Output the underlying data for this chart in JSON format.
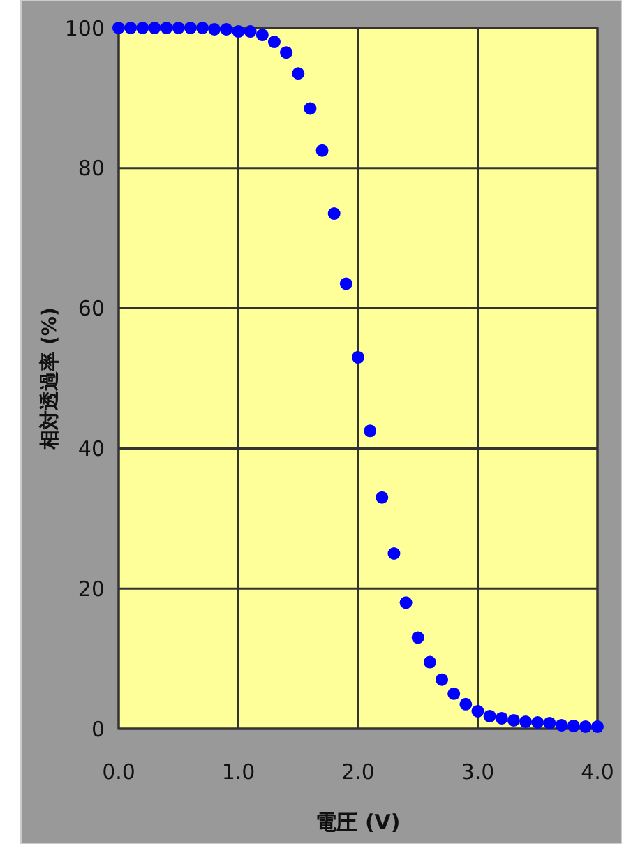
{
  "chart_data": {
    "type": "scatter",
    "xlabel": "電圧 (V)",
    "ylabel": "相対透過率 (%)",
    "x": [
      0,
      0.1,
      0.2,
      0.3,
      0.4,
      0.5,
      0.6,
      0.7,
      0.8,
      0.9,
      1.0,
      1.1,
      1.2,
      1.3,
      1.4,
      1.5,
      1.6,
      1.7,
      1.8,
      1.9,
      2.0,
      2.1,
      2.2,
      2.3,
      2.4,
      2.5,
      2.6,
      2.7,
      2.8,
      2.9,
      3.0,
      3.1,
      3.2,
      3.3,
      3.4,
      3.5,
      3.6,
      3.7,
      3.8,
      3.9,
      4.0
    ],
    "series": [
      {
        "color": "#0000ff",
        "values": [
          100,
          100,
          100,
          100,
          100,
          100,
          100,
          100,
          99.8,
          99.8,
          99.5,
          99.5,
          99,
          98,
          96.5,
          93.5,
          88.5,
          82.5,
          73.5,
          63.5,
          53,
          42.5,
          33,
          25,
          18,
          13,
          9.5,
          7,
          5,
          3.5,
          2.5,
          1.8,
          1.5,
          1.2,
          1,
          0.9,
          0.8,
          0.5,
          0.4,
          0.3,
          0.3
        ]
      }
    ],
    "xlim": [
      0,
      4
    ],
    "ylim": [
      0,
      100
    ],
    "xticks": [
      {
        "value": 0,
        "label": "0.0"
      },
      {
        "value": 1,
        "label": "1.0"
      },
      {
        "value": 2,
        "label": "2.0"
      },
      {
        "value": 3,
        "label": "3.0"
      },
      {
        "value": 4,
        "label": "4.0"
      }
    ],
    "yticks": [
      0,
      20,
      40,
      60,
      80,
      100
    ],
    "grid": true,
    "marker": "circle"
  }
}
